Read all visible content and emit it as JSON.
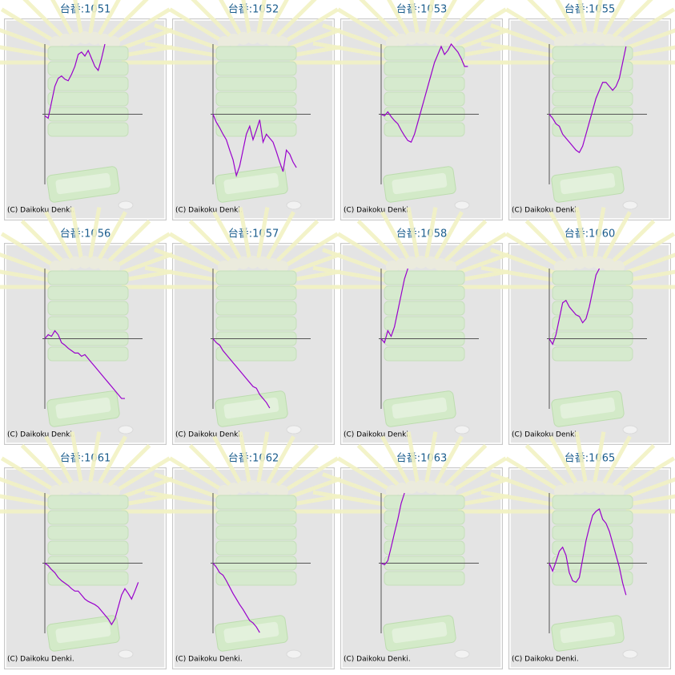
{
  "credit": "(C) Daikoku Denki.",
  "chart_data": [
    {
      "type": "line",
      "title": "台番:1051",
      "color": "#9900cc",
      "xlim": [
        0,
        30
      ],
      "ylim": [
        -88,
        88
      ],
      "values": [
        -2,
        -5,
        15,
        35,
        45,
        48,
        44,
        42,
        50,
        60,
        75,
        78,
        73,
        80,
        70,
        60,
        55,
        70,
        88
      ]
    },
    {
      "type": "line",
      "title": "台番:1052",
      "color": "#9900cc",
      "xlim": [
        0,
        30
      ],
      "ylim": [
        -88,
        88
      ],
      "values": [
        0,
        -10,
        -17,
        -25,
        -32,
        -45,
        -57,
        -77,
        -65,
        -45,
        -25,
        -15,
        -32,
        -20,
        -7,
        -35,
        -25,
        -30,
        -35,
        -47,
        -60,
        -72,
        -45,
        -50,
        -60,
        -67
      ]
    },
    {
      "type": "line",
      "title": "台番:1053",
      "color": "#9900cc",
      "xlim": [
        0,
        30
      ],
      "ylim": [
        -88,
        88
      ],
      "values": [
        0,
        -2,
        3,
        -3,
        -8,
        -12,
        -20,
        -27,
        -33,
        -35,
        -25,
        -10,
        5,
        20,
        35,
        50,
        65,
        75,
        85,
        75,
        80,
        88,
        83,
        78,
        70,
        60,
        60
      ]
    },
    {
      "type": "line",
      "title": "台番:1055",
      "color": "#9900cc",
      "xlim": [
        0,
        30
      ],
      "ylim": [
        -88,
        88
      ],
      "values": [
        0,
        -5,
        -12,
        -15,
        -25,
        -30,
        -35,
        -40,
        -45,
        -48,
        -40,
        -25,
        -10,
        5,
        20,
        30,
        40,
        40,
        35,
        30,
        35,
        45,
        65,
        85
      ]
    },
    {
      "type": "line",
      "title": "台番:1056",
      "color": "#9900cc",
      "xlim": [
        0,
        30
      ],
      "ylim": [
        -88,
        88
      ],
      "values": [
        0,
        5,
        3,
        10,
        5,
        -5,
        -8,
        -12,
        -15,
        -18,
        -18,
        -22,
        -20,
        -25,
        -30,
        -35,
        -40,
        -45,
        -50,
        -55,
        -60,
        -65,
        -70,
        -75,
        -75
      ]
    },
    {
      "type": "line",
      "title": "台番:1057",
      "color": "#9900cc",
      "xlim": [
        0,
        30
      ],
      "ylim": [
        -88,
        88
      ],
      "values": [
        0,
        -5,
        -8,
        -15,
        -20,
        -25,
        -30,
        -35,
        -40,
        -45,
        -50,
        -55,
        -60,
        -62,
        -70,
        -75,
        -80,
        -87
      ]
    },
    {
      "type": "line",
      "title": "台番:1058",
      "color": "#9900cc",
      "xlim": [
        0,
        30
      ],
      "ylim": [
        -88,
        88
      ],
      "values": [
        0,
        -5,
        10,
        3,
        15,
        35,
        55,
        75,
        88
      ]
    },
    {
      "type": "line",
      "title": "台番:1060",
      "color": "#9900cc",
      "xlim": [
        0,
        30
      ],
      "ylim": [
        -88,
        88
      ],
      "values": [
        0,
        -7,
        5,
        25,
        45,
        48,
        40,
        35,
        30,
        28,
        20,
        25,
        40,
        60,
        80,
        88
      ]
    },
    {
      "type": "line",
      "title": "台番:1061",
      "color": "#9900cc",
      "xlim": [
        0,
        30
      ],
      "ylim": [
        -88,
        88
      ],
      "values": [
        0,
        -3,
        -8,
        -12,
        -18,
        -22,
        -25,
        -28,
        -32,
        -35,
        -35,
        -40,
        -45,
        -48,
        -50,
        -52,
        -55,
        -60,
        -65,
        -70,
        -77,
        -70,
        -55,
        -40,
        -32,
        -38,
        -45,
        -35,
        -24
      ]
    },
    {
      "type": "line",
      "title": "台番:1062",
      "color": "#9900cc",
      "xlim": [
        0,
        30
      ],
      "ylim": [
        -88,
        88
      ],
      "values": [
        0,
        -5,
        -12,
        -15,
        -22,
        -30,
        -38,
        -45,
        -52,
        -58,
        -65,
        -72,
        -75,
        -80,
        -87
      ]
    },
    {
      "type": "line",
      "title": "台番:1063",
      "color": "#9900cc",
      "xlim": [
        0,
        30
      ],
      "ylim": [
        -88,
        88
      ],
      "values": [
        0,
        -2,
        3,
        20,
        38,
        55,
        75,
        88
      ]
    },
    {
      "type": "line",
      "title": "台番:1065",
      "color": "#9900cc",
      "xlim": [
        0,
        30
      ],
      "ylim": [
        -88,
        88
      ],
      "values": [
        0,
        -10,
        2,
        15,
        20,
        10,
        -12,
        -22,
        -24,
        -18,
        5,
        28,
        45,
        60,
        65,
        68,
        55,
        50,
        40,
        25,
        10,
        -5,
        -25,
        -40
      ]
    }
  ]
}
